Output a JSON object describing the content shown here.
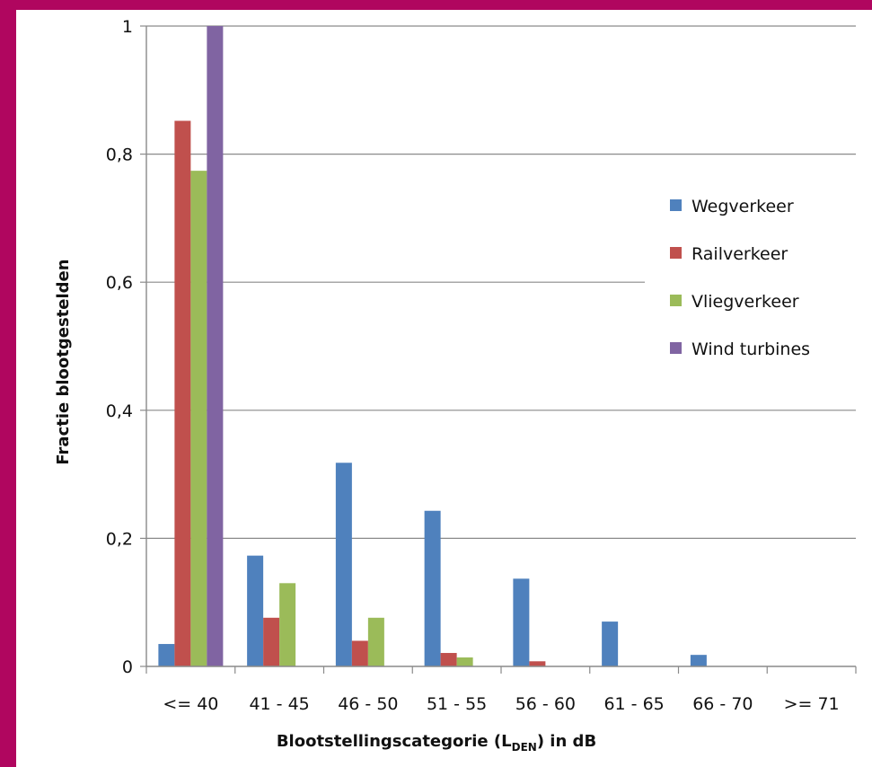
{
  "chart_data": {
    "type": "bar",
    "xlabel_main": "Blootstellingscategorie  (L",
    "xlabel_sub": "DEN",
    "xlabel_tail": ") in dB",
    "ylabel": "Fractie blootgestelden",
    "ylim": [
      0,
      1
    ],
    "yticks": [
      "0",
      "0,2",
      "0,4",
      "0,6",
      "0,8",
      "1"
    ],
    "grid": true,
    "legend_position": "right",
    "categories": [
      "<= 40",
      "41 - 45",
      "46 - 50",
      "51 - 55",
      "56 - 60",
      "61 - 65",
      "66 - 70",
      ">= 71"
    ],
    "series": [
      {
        "name": "Wegverkeer",
        "color": "#4f81bd",
        "values": [
          0.035,
          0.173,
          0.318,
          0.243,
          0.137,
          0.07,
          0.018,
          0
        ]
      },
      {
        "name": "Railverkeer",
        "color": "#c0504d",
        "values": [
          0.852,
          0.076,
          0.04,
          0.021,
          0.008,
          0,
          0,
          0
        ]
      },
      {
        "name": "Vliegverkeer",
        "color": "#9bbb59",
        "values": [
          0.774,
          0.13,
          0.076,
          0.014,
          0,
          0,
          0,
          0
        ]
      },
      {
        "name": "Wind turbines",
        "color": "#8064a2",
        "values": [
          1.0,
          0,
          0,
          0,
          0,
          0,
          0,
          0
        ]
      }
    ]
  }
}
